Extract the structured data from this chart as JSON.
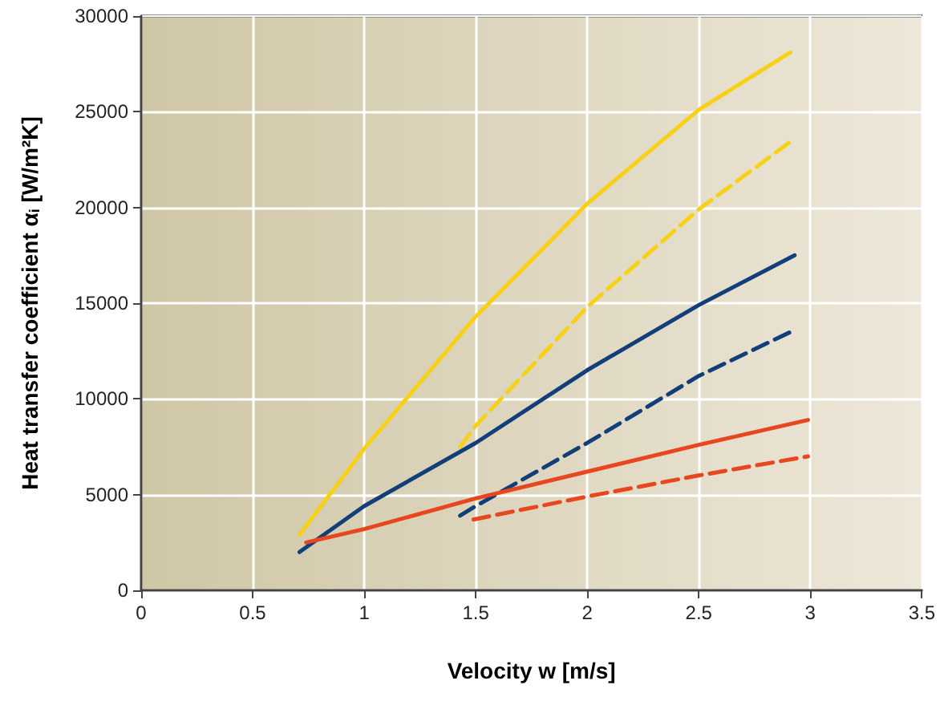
{
  "chart_data": {
    "type": "line",
    "xlabel": "Velocity w [m/s]",
    "ylabel": "Heat transfer coefficient α$_{i}$ [W/m²K]",
    "xlim": [
      0,
      3.5
    ],
    "xticks": [
      0,
      0.5,
      1,
      1.5,
      2,
      2.5,
      3,
      3.5
    ],
    "ylim": [
      0,
      30000
    ],
    "yticks": [
      0,
      5000,
      10000,
      15000,
      20000,
      25000,
      30000
    ],
    "grid": true,
    "marker": "none",
    "series": [
      {
        "color": "#f7d117",
        "line_style": "solid",
        "x": [
          0.71,
          1,
          1.5,
          2,
          2.5,
          2.91
        ],
        "values": [
          2900,
          7400,
          14300,
          20200,
          25100,
          28100
        ]
      },
      {
        "color": "#f7d117",
        "line_style": "dashed",
        "x": [
          1.43,
          1.5,
          2,
          2.5,
          2.93
        ],
        "values": [
          7500,
          8600,
          14800,
          19900,
          23600
        ]
      },
      {
        "color": "#123f7a",
        "line_style": "solid",
        "x": [
          0.71,
          1,
          1.5,
          2,
          2.5,
          2.93
        ],
        "values": [
          2000,
          4400,
          7700,
          11500,
          14900,
          17500
        ]
      },
      {
        "color": "#123f7a",
        "line_style": "dashed",
        "x": [
          1.43,
          1.5,
          2,
          2.5,
          2.93
        ],
        "values": [
          3900,
          4400,
          7700,
          11200,
          13600
        ]
      },
      {
        "color": "#e8461e",
        "line_style": "solid",
        "x": [
          0.74,
          1,
          1.5,
          2,
          2.5,
          2.99
        ],
        "values": [
          2500,
          3200,
          4800,
          6200,
          7600,
          8900
        ]
      },
      {
        "color": "#e8461e",
        "line_style": "dashed",
        "x": [
          1.49,
          2,
          2.5,
          2.99
        ],
        "values": [
          3700,
          4900,
          6000,
          7000
        ]
      }
    ]
  }
}
